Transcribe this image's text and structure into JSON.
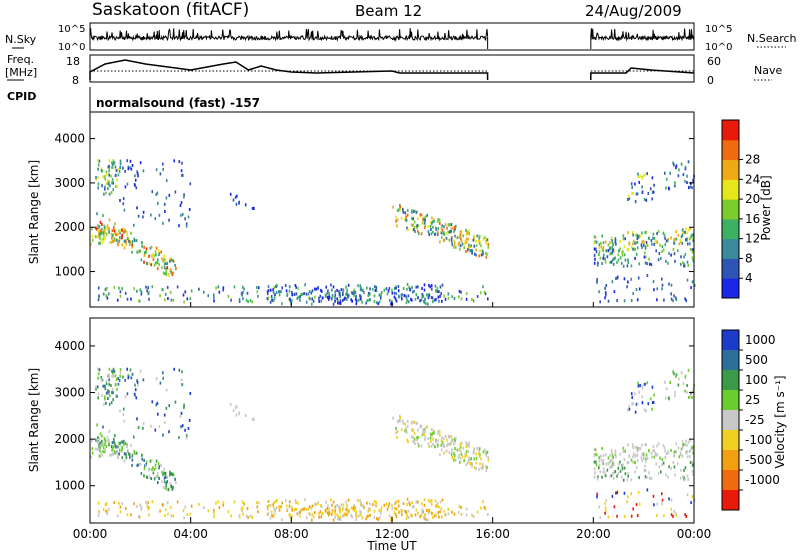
{
  "header": {
    "station": "Saskatoon (fitACF)",
    "beam": "Beam 12",
    "date": "24/Aug/2009"
  },
  "control_panel": {
    "nsky_label": "N.Sky",
    "nsky_ticks": [
      "10^5",
      "10^0"
    ],
    "nsearch_label": "N.Search",
    "freq_label_line1": "Freq.",
    "freq_label_line2": "[MHz]",
    "freq_ticks": [
      "18",
      "8"
    ],
    "nave_label": "Nave",
    "nave_ticks": [
      "60",
      "0"
    ],
    "cpid_label": "CPID",
    "cpid_text": "normalsound (fast) -157"
  },
  "chart_data": [
    {
      "type": "heatmap",
      "name": "power",
      "ylabel": "Slant Range [km]",
      "y_ticks": [
        "1000",
        "2000",
        "3000",
        "4000"
      ],
      "ylim": [
        200,
        4600
      ],
      "xlim": [
        0,
        24
      ],
      "colorbar_label": "Power [dB]",
      "colorbar_ticks": [
        "4",
        "8",
        "12",
        "16",
        "20",
        "24",
        "28"
      ],
      "colorbar_colors": [
        "#1c26e6",
        "#2e54b5",
        "#3a8a9a",
        "#3cb063",
        "#7dcc2e",
        "#e6e61a",
        "#f0a814",
        "#f06a0e",
        "#e81a0a"
      ]
    },
    {
      "type": "heatmap",
      "name": "velocity",
      "ylabel": "Slant Range [km]",
      "y_ticks": [
        "1000",
        "2000",
        "3000",
        "4000"
      ],
      "ylim": [
        200,
        4600
      ],
      "xlim": [
        0,
        24
      ],
      "colorbar_label": "Velocity [m s⁻¹]",
      "colorbar_ticks": [
        "1000",
        "500",
        "100",
        "25",
        "-25",
        "-100",
        "-500",
        "-1000"
      ],
      "colorbar_colors": [
        "#1c3acc",
        "#2e6e9a",
        "#3a9a4a",
        "#6acc2e",
        "#c8c8c8",
        "#f0d020",
        "#f0a010",
        "#f06a0e",
        "#e81a0a"
      ]
    }
  ],
  "x_axis": {
    "ticks": [
      "00:00",
      "04:00",
      "08:00",
      "12:00",
      "16:00",
      "20:00",
      "00:00"
    ],
    "label": "Time UT"
  }
}
